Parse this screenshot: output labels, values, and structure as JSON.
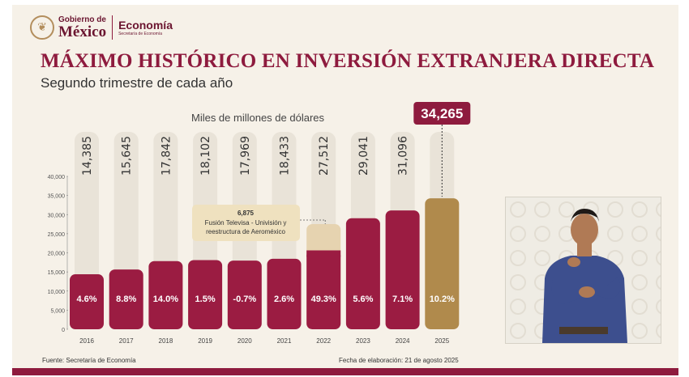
{
  "branding": {
    "gov_line1": "Gobierno de",
    "gov_line2": "México",
    "ministry": "Economía",
    "ministry_sub": "Secretaría de Economía"
  },
  "title": "MÁXIMO HISTÓRICO EN INVERSIÓN EXTRANJERA DIRECTA",
  "subtitle": "Segundo trimestre de cada año",
  "chart_data": {
    "type": "bar",
    "unit_label": "Miles de millones de dólares",
    "categories": [
      "2016",
      "2017",
      "2018",
      "2019",
      "2020",
      "2021",
      "2022",
      "2023",
      "2024",
      "2025"
    ],
    "values": [
      14385,
      15645,
      17842,
      18102,
      17969,
      18433,
      27512,
      29041,
      31096,
      34265
    ],
    "value_labels": [
      "14,385",
      "15,645",
      "17,842",
      "18,102",
      "17,969",
      "18,433",
      "27,512",
      "29,041",
      "31,096",
      "34,265"
    ],
    "growth_labels": [
      "4.6%",
      "8.8%",
      "14.0%",
      "1.5%",
      "-0.7%",
      "2.6%",
      "49.3%",
      "5.6%",
      "7.1%",
      "10.2%"
    ],
    "stacked_2022": {
      "base": 20637,
      "extra": 6875
    },
    "ylim": [
      0,
      40000
    ],
    "yticks": [
      0,
      5000,
      10000,
      15000,
      20000,
      25000,
      30000,
      35000,
      40000
    ],
    "ytick_labels": [
      "0",
      "5,000",
      "10,000",
      "15,000",
      "20,000",
      "25,000",
      "30,000",
      "35,000",
      "40,000"
    ],
    "highlight_label": "34,265",
    "annotation": {
      "value": "6,875",
      "line1": "Fusión Televisa - Univisión y",
      "line2": "reestructura de Aeroméxico"
    },
    "colors": {
      "bar": "#9b1c42",
      "bar_extra": "#e6d3b0",
      "highlight": "#b08a4c",
      "column_bg": "#e9e3d8",
      "badge": "#8e1b3e"
    }
  },
  "footer": {
    "source": "Fuente: Secretaría de Economía",
    "date": "Fecha de elaboración: 21 de agosto 2025"
  }
}
